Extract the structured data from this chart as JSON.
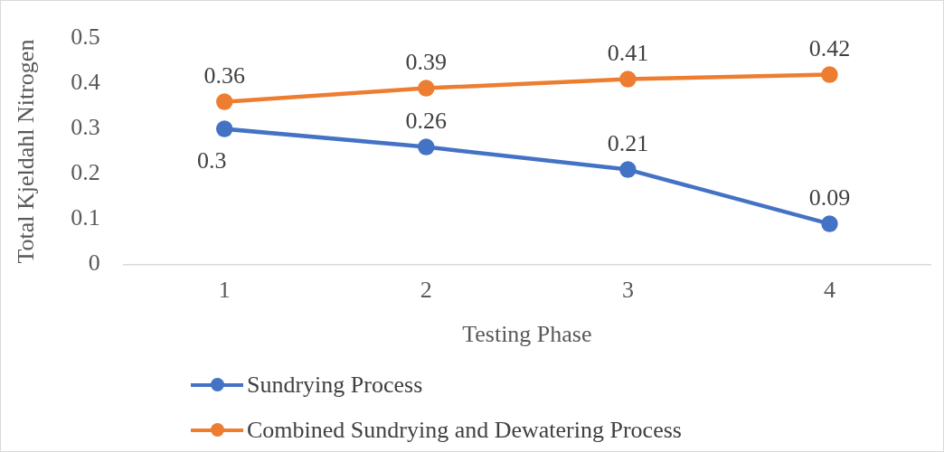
{
  "chart_data": {
    "type": "line",
    "xlabel": "Testing Phase",
    "ylabel": "Total Kjeldahl Nitrogen",
    "categories": [
      "1",
      "2",
      "3",
      "4"
    ],
    "series": [
      {
        "name": "Sundrying Process",
        "color": "#4472c4",
        "values": [
          0.3,
          0.26,
          0.21,
          0.09
        ]
      },
      {
        "name": "Combined Sundrying and Dewatering Process",
        "color": "#ed7d31",
        "values": [
          0.36,
          0.39,
          0.41,
          0.42
        ]
      }
    ],
    "ylim": [
      0,
      0.5
    ],
    "yticks": [
      0,
      0.1,
      0.2,
      0.3,
      0.4,
      0.5
    ],
    "data_labels": true,
    "legend": "bottom",
    "marker": "circle",
    "line_style": "solid"
  }
}
